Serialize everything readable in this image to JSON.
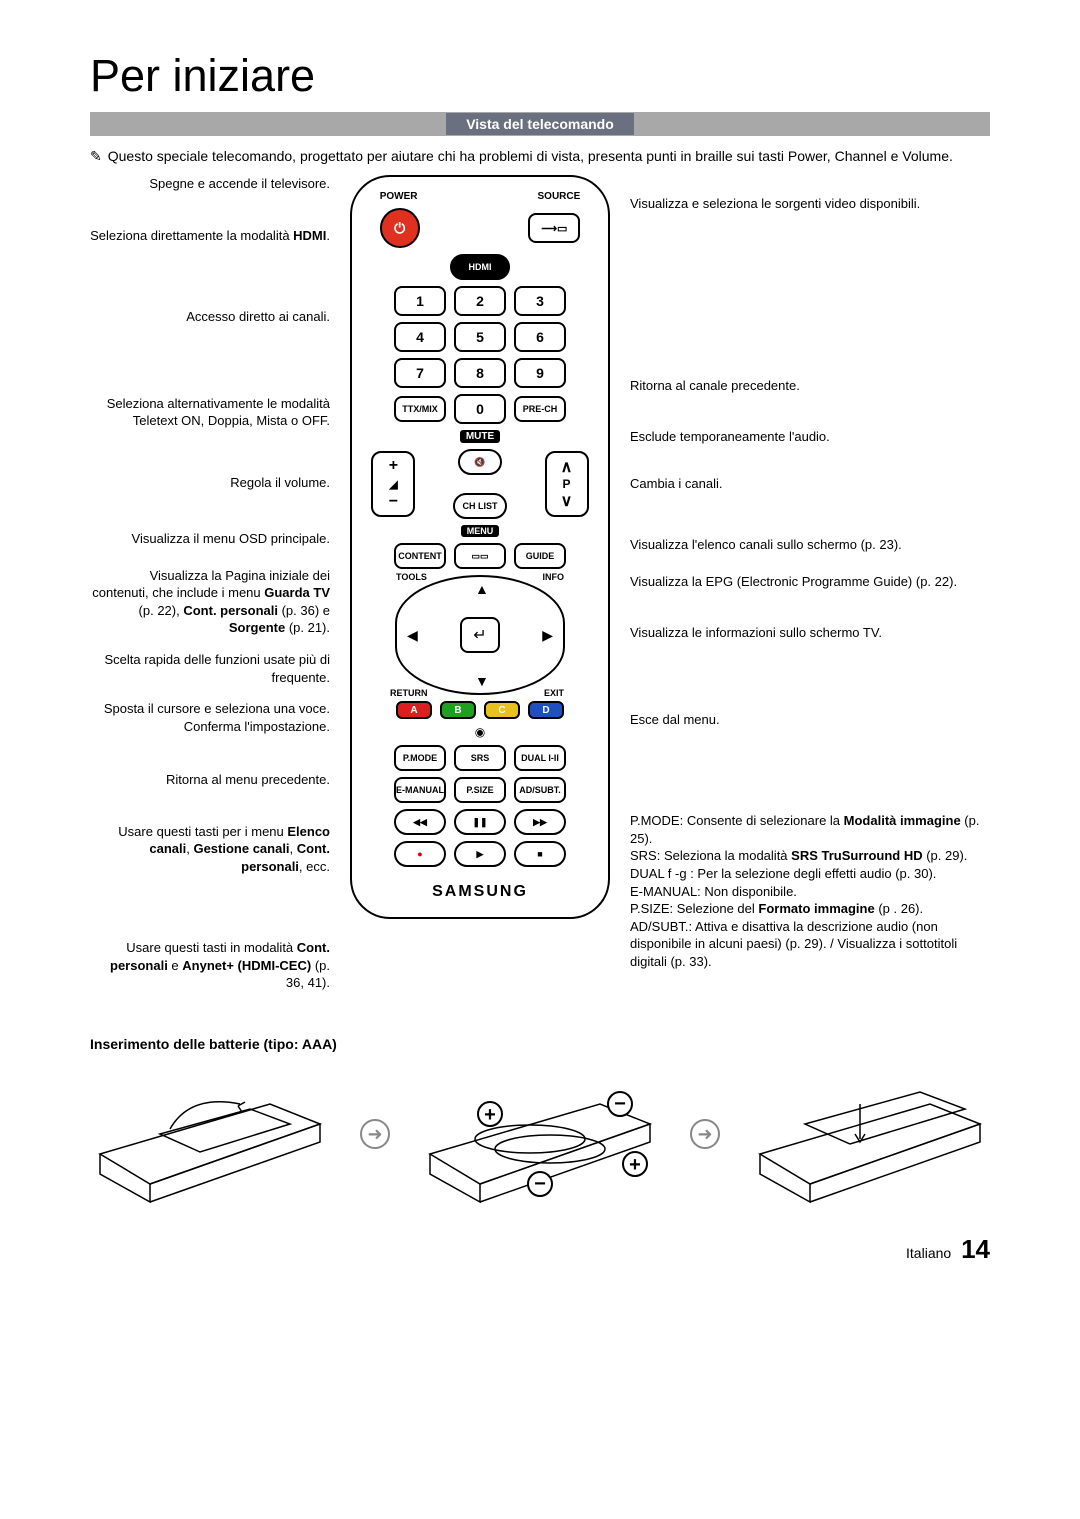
{
  "page": {
    "title": "Per iniziare",
    "section_header": "Vista del telecomando",
    "intro_icon": "✎",
    "intro_text": "Questo speciale telecomando, progettato per aiutare chi ha problemi di vista, presenta punti in braille sui tasti Power, Channel e Volume.",
    "battery_title": "Inserimento delle batterie (tipo: AAA)",
    "footer_lang": "Italiano",
    "footer_page": "14"
  },
  "remote": {
    "top_labels": {
      "power": "POWER",
      "source": "SOURCE"
    },
    "power_symbol": "⏻",
    "source_symbol": "⟶▭",
    "hdmi": "HDMI",
    "digits": [
      "1",
      "2",
      "3",
      "4",
      "5",
      "6",
      "7",
      "8",
      "9",
      "0"
    ],
    "ttx": "TTX/MIX",
    "prech": "PRE-CH",
    "mute": "MUTE",
    "mute_symbol": "🔇",
    "vol_plus": "+",
    "vol_minus": "−",
    "vol_icon": "◢",
    "ch_up": "∧",
    "ch_down": "∨",
    "ch_label": "P",
    "chlist": "CH LIST",
    "menu": "MENU",
    "content": "CONTENT",
    "guide": "GUIDE",
    "tools": "TOOLS",
    "info": "INFO",
    "return": "RETURN",
    "exit": "EXIT",
    "enter": "↵",
    "colors": {
      "a": "A",
      "b": "B",
      "c": "C",
      "d": "D"
    },
    "eye": "◉",
    "row_mode": {
      "pmode": "P.MODE",
      "srs": "SRS",
      "dual": "DUAL I-II"
    },
    "row_em": {
      "emanual": "E-MANUAL",
      "psize": "P.SIZE",
      "adsubt": "AD/SUBT."
    },
    "transport": {
      "rew": "◀◀",
      "pause": "❚❚",
      "ff": "▶▶",
      "rec": "●",
      "play": "▶",
      "stop": "■"
    },
    "brand": "SAMSUNG"
  },
  "left": [
    {
      "text": "Spegne e accende il televisore."
    },
    {
      "text": "Seleziona direttamente la modalità ",
      "bold_after": "HDMI",
      "suffix": "."
    },
    {
      "text": "Accesso diretto ai canali."
    },
    {
      "text": "Seleziona alternativamente le modalità Teletext ON, Doppia, Mista o OFF."
    },
    {
      "text": "Regola il volume."
    },
    {
      "text": "Visualizza il menu OSD principale."
    },
    {
      "html": "Visualizza la Pagina iniziale dei contenuti, che include i menu <b>Guarda TV</b> (p. 22), <b>Cont. personali</b> (p. 36) e <b>Sorgente</b> (p. 21)."
    },
    {
      "text": "Scelta rapida delle funzioni usate più di frequente."
    },
    {
      "text": "Sposta il cursore e seleziona una voce. Conferma l'impostazione."
    },
    {
      "text": "Ritorna al menu precedente."
    },
    {
      "html": "Usare questi tasti per i menu <b>Elenco canali</b>, <b>Gestione canali</b>, <b>Cont. personali</b>, ecc."
    },
    {
      "html": "Usare questi tasti in modalità <b>Cont. personali</b> e <b>Anynet+ (HDMI-CEC)</b> (p. 36, 41)."
    }
  ],
  "right": [
    {
      "text": "Visualizza e seleziona le sorgenti video disponibili."
    },
    {
      "text": "Ritorna al canale precedente."
    },
    {
      "text": "Esclude temporaneamente l'audio."
    },
    {
      "text": "Cambia i canali."
    },
    {
      "text": "Visualizza l'elenco canali sullo schermo (p. 23)."
    },
    {
      "text": "Visualizza la EPG (Electronic Programme Guide) (p. 22)."
    },
    {
      "text": "Visualizza le informazioni sullo schermo TV."
    },
    {
      "text": "Esce dal menu."
    },
    {
      "html": "P.MODE: Consente di selezionare la <b>Modalità immagine</b> (p. 25).<br>SRS: Seleziona la modalità <b>SRS TruSurround HD</b> (p. 29).<br>DUAL f -g : Per la selezione degli effetti audio (p. 30).<br>E-MANUAL: Non disponibile.<br>P.SIZE: Selezione del <b>Formato immagine</b> (p . 26).<br>AD/SUBT.: Attiva e disattiva la descrizione audio (non disponibile in alcuni paesi) (p. 29). / Visualizza i sottotitoli digitali (p. 33)."
    }
  ],
  "left_spacing": [
    0,
    20,
    50,
    55,
    30,
    25,
    5,
    0,
    0,
    22,
    20,
    50
  ],
  "right_spacing": [
    20,
    150,
    20,
    15,
    30,
    5,
    20,
    55,
    70
  ]
}
